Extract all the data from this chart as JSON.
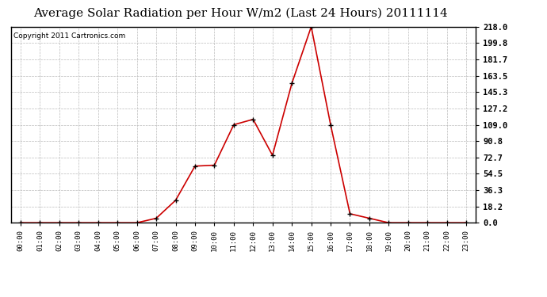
{
  "title": "Average Solar Radiation per Hour W/m2 (Last 24 Hours) 20111114",
  "copyright": "Copyright 2011 Cartronics.com",
  "hours": [
    0,
    1,
    2,
    3,
    4,
    5,
    6,
    7,
    8,
    9,
    10,
    11,
    12,
    13,
    14,
    15,
    16,
    17,
    18,
    19,
    20,
    21,
    22,
    23
  ],
  "values": [
    0,
    0,
    0,
    0,
    0,
    0,
    0,
    5,
    25,
    63,
    64,
    109,
    115,
    75,
    155,
    218,
    109,
    10,
    5,
    0,
    0,
    0,
    0,
    0
  ],
  "line_color": "#cc0000",
  "marker_color": "#000000",
  "bg_color": "#ffffff",
  "plot_bg_color": "#ffffff",
  "grid_color": "#bbbbbb",
  "title_fontsize": 11,
  "copyright_fontsize": 6.5,
  "ymax": 218.0,
  "ymin": 0.0,
  "ytick_values": [
    218.0,
    199.8,
    181.7,
    163.5,
    145.3,
    127.2,
    109.0,
    90.8,
    72.7,
    54.5,
    36.3,
    18.2,
    0.0
  ],
  "ytick_labels": [
    "218.0",
    "199.8",
    "181.7",
    "163.5",
    "145.3",
    "127.2",
    "109.0",
    "90.8",
    "72.7",
    "54.5",
    "36.3",
    "18.2",
    "0.0"
  ]
}
